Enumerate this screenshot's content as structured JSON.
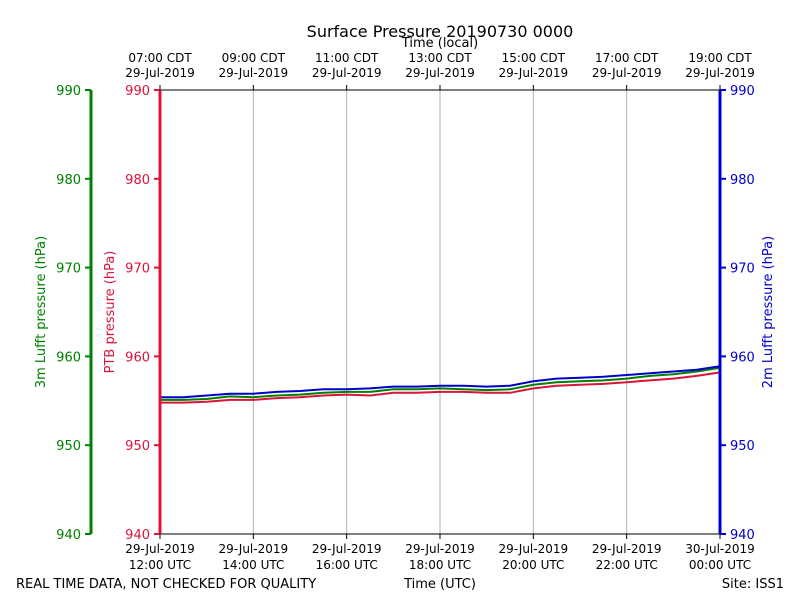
{
  "chart_data": {
    "type": "line",
    "title": "Surface Pressure 20190730 0000",
    "x_top_label": "Time (local)",
    "x_bottom_label": "Time (UTC)",
    "ylabel_left_outer": "3m Lufft pressure (hPa)",
    "ylabel_left_inner": "PTB pressure (hPa)",
    "ylabel_right": "2m Lufft pressure (hPa)",
    "ylim": [
      940,
      990
    ],
    "xlim": [
      12,
      24
    ],
    "yticks": [
      "940",
      "950",
      "960",
      "970",
      "980",
      "990"
    ],
    "x_ticks_utc": [
      {
        "date": "29-Jul-2019",
        "time": "12:00 UTC"
      },
      {
        "date": "29-Jul-2019",
        "time": "14:00 UTC"
      },
      {
        "date": "29-Jul-2019",
        "time": "16:00 UTC"
      },
      {
        "date": "29-Jul-2019",
        "time": "18:00 UTC"
      },
      {
        "date": "29-Jul-2019",
        "time": "20:00 UTC"
      },
      {
        "date": "29-Jul-2019",
        "time": "22:00 UTC"
      },
      {
        "date": "30-Jul-2019",
        "time": "00:00 UTC"
      }
    ],
    "x_ticks_local": [
      {
        "time": "07:00 CDT",
        "date": "29-Jul-2019"
      },
      {
        "time": "09:00 CDT",
        "date": "29-Jul-2019"
      },
      {
        "time": "11:00 CDT",
        "date": "29-Jul-2019"
      },
      {
        "time": "13:00 CDT",
        "date": "29-Jul-2019"
      },
      {
        "time": "15:00 CDT",
        "date": "29-Jul-2019"
      },
      {
        "time": "17:00 CDT",
        "date": "29-Jul-2019"
      },
      {
        "time": "19:00 CDT",
        "date": "29-Jul-2019"
      }
    ],
    "x": [
      12.0,
      12.5,
      13.0,
      13.5,
      14.0,
      14.5,
      15.0,
      15.5,
      16.0,
      16.5,
      17.0,
      17.5,
      18.0,
      18.5,
      19.0,
      19.5,
      20.0,
      20.5,
      21.0,
      21.5,
      22.0,
      22.5,
      23.0,
      23.5,
      24.0
    ],
    "series": [
      {
        "color": "#dc143c",
        "values": [
          954.8,
          954.8,
          954.9,
          955.1,
          955.1,
          955.3,
          955.4,
          955.6,
          955.7,
          955.6,
          955.9,
          955.9,
          956.0,
          956.0,
          955.9,
          955.9,
          956.4,
          956.7,
          956.8,
          956.9,
          957.1,
          957.3,
          957.5,
          957.8,
          958.2
        ]
      },
      {
        "color": "#008000",
        "values": [
          955.1,
          955.1,
          955.2,
          955.5,
          955.4,
          955.6,
          955.7,
          955.9,
          956.0,
          956.0,
          956.3,
          956.3,
          956.4,
          956.3,
          956.2,
          956.3,
          956.8,
          957.1,
          957.2,
          957.3,
          957.5,
          957.8,
          958.0,
          958.3,
          958.7
        ]
      },
      {
        "color": "#0000cd",
        "values": [
          955.4,
          955.4,
          955.6,
          955.8,
          955.8,
          956.0,
          956.1,
          956.3,
          956.3,
          956.4,
          956.6,
          956.6,
          956.7,
          956.7,
          956.6,
          956.7,
          957.2,
          957.5,
          957.6,
          957.7,
          957.9,
          958.1,
          958.3,
          958.5,
          958.9
        ]
      }
    ],
    "grid": "vertical"
  },
  "colors": {
    "left_outer_axis": "#008000",
    "left_inner_axis": "#dc143c",
    "right_axis": "#0000cd",
    "grid": "#b0b0b0"
  },
  "footer": {
    "left_note": "REAL TIME DATA, NOT CHECKED FOR QUALITY",
    "site": "Site: ISS1"
  }
}
